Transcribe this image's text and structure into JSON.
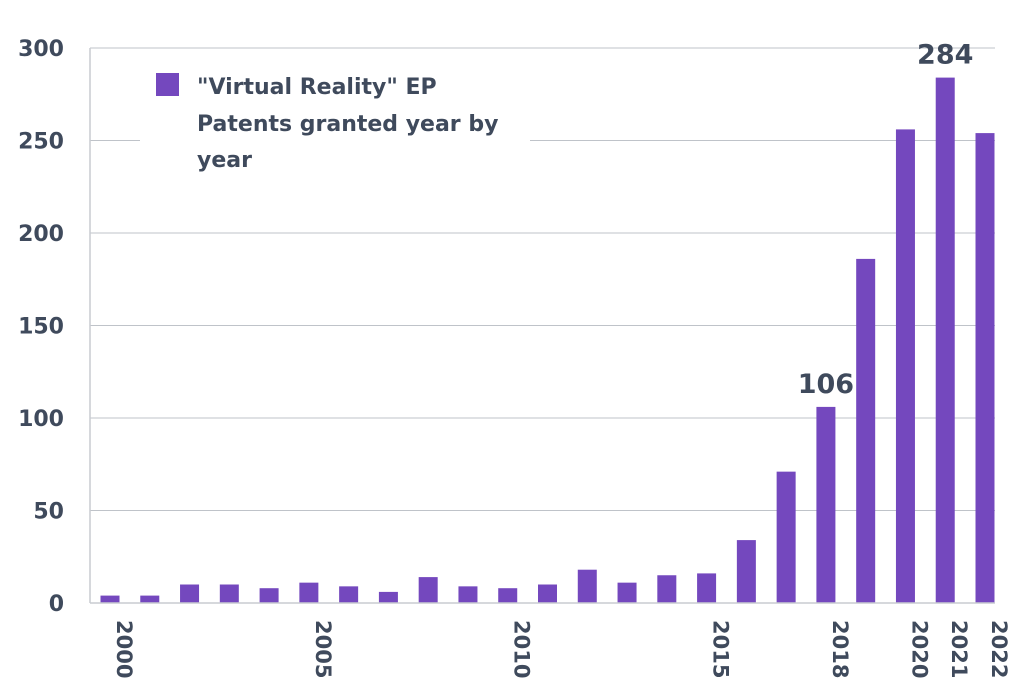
{
  "chart_data": {
    "type": "bar",
    "categories": [
      "2000",
      "2001",
      "2002",
      "2003",
      "2004",
      "2005",
      "2006",
      "2007",
      "2008",
      "2009",
      "2010",
      "2011",
      "2012",
      "2013",
      "2014",
      "2015",
      "2016",
      "2017",
      "2018",
      "2019",
      "2020",
      "2021",
      "2022"
    ],
    "x_tick_labels": [
      "2000",
      "2005",
      "2010",
      "2015",
      "2018",
      "2020",
      "2021",
      "2022"
    ],
    "series": [
      {
        "name": "\"Virtual Reality\" EP Patents granted year by year",
        "legend_lines": [
          "\"Virtual Reality\" EP",
          "Patents granted year by",
          "year"
        ],
        "values": [
          4,
          4,
          10,
          10,
          8,
          11,
          9,
          6,
          14,
          9,
          8,
          10,
          18,
          11,
          15,
          16,
          34,
          71,
          106,
          186,
          256,
          284,
          254
        ],
        "color": "#7448be"
      }
    ],
    "data_labels": [
      {
        "category": "2018",
        "text": "106"
      },
      {
        "category": "2021",
        "text": "284"
      }
    ],
    "y_ticks": [
      0,
      50,
      100,
      150,
      200,
      250,
      300
    ],
    "ylim": [
      0,
      300
    ],
    "grid": true,
    "legend_position": "top-left",
    "title": "",
    "xlabel": "",
    "ylabel": ""
  }
}
